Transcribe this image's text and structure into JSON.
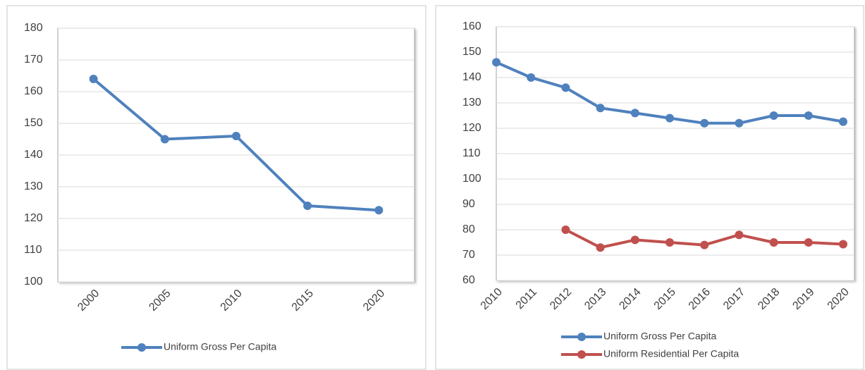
{
  "chart_data": [
    {
      "type": "line",
      "categories": [
        "2000",
        "2005",
        "2010",
        "2015",
        "2020"
      ],
      "series": [
        {
          "name": "Uniform Gross Per Capita",
          "color": "#4f81bd",
          "values": [
            164,
            145,
            146,
            124,
            122.6
          ]
        }
      ],
      "ylim": [
        100,
        180
      ],
      "yticks": [
        100,
        110,
        120,
        130,
        140,
        150,
        160,
        170,
        180
      ],
      "grid": true,
      "legend": "bottom"
    },
    {
      "type": "line",
      "categories": [
        "2010",
        "2011",
        "2012",
        "2013",
        "2014",
        "2015",
        "2016",
        "2017",
        "2018",
        "2019",
        "2020"
      ],
      "series": [
        {
          "name": "Uniform Gross Per Capita",
          "color": "#4f81bd",
          "values": [
            146,
            140,
            136,
            128,
            126,
            124,
            122,
            122,
            125,
            125,
            122.6
          ]
        },
        {
          "name": "Uniform Residential Per Capita",
          "color": "#c0504d",
          "values": [
            null,
            null,
            80,
            73,
            76,
            75,
            74,
            78,
            75,
            75,
            74.3
          ]
        }
      ],
      "ylim": [
        60,
        160
      ],
      "yticks": [
        60,
        70,
        80,
        90,
        100,
        110,
        120,
        130,
        140,
        150,
        160
      ],
      "grid": true,
      "legend": "bottom"
    }
  ]
}
